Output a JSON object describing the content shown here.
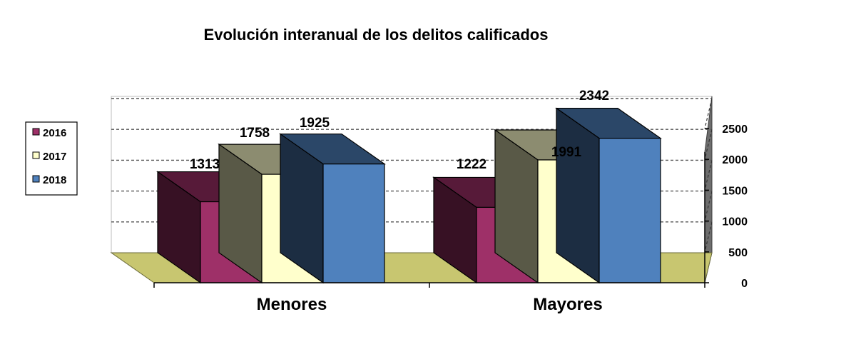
{
  "chart_data": {
    "type": "bar",
    "style": "3d-clustered-column",
    "title": "Evolución interanual de los delitos calificados",
    "categories": [
      "Menores",
      "Mayores"
    ],
    "series": [
      {
        "name": "2016",
        "values": [
          1313,
          1222
        ],
        "color": "#9E3068"
      },
      {
        "name": "2017",
        "values": [
          1758,
          1991
        ],
        "color": "#FFFFCC"
      },
      {
        "name": "2018",
        "values": [
          1925,
          2342
        ],
        "color": "#4F81BD"
      }
    ],
    "data_labels": {
      "Menores": [
        "1313",
        "1758",
        "1925"
      ],
      "Mayores": [
        "1222",
        "1991",
        "2342"
      ]
    },
    "yticks": [
      "0",
      "500",
      "1000",
      "1500",
      "2000",
      "2500"
    ],
    "ylim": [
      0,
      2500
    ],
    "y_axis_side": "right",
    "gridlines": "dashed",
    "legend": "left",
    "floor_color": "#C8C670",
    "wall_color": "#6E6E6E"
  }
}
